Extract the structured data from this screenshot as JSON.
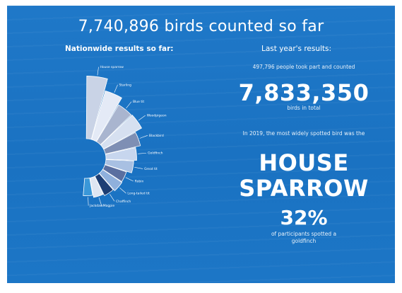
{
  "headline": "7,740,896 birds counted so far",
  "left_caption": "Nationwide results so far:",
  "right_caption": "Last year's results:",
  "last_year": {
    "participants": "497,796 people took part and counted",
    "total_value": "7,833,350",
    "total_caption": "birds in total",
    "species_intro": "In 2019, the most widely spotted bird was the",
    "species_line1": "HOUSE",
    "species_line2": "SPARROW",
    "percent": "32%",
    "percent_caption_line1": "of participants spotted a",
    "percent_caption_line2": "goldfinch"
  },
  "chart_data": {
    "type": "pie",
    "variant": "half-donut rose (radial bars)",
    "categories": [
      "House sparrow",
      "Starling",
      "Blue tit",
      "Woodpigeon",
      "Blackbird",
      "Goldfinch",
      "Great tit",
      "Robin",
      "Long-tailed tit",
      "Chaffinch",
      "Magpie",
      "Jackdaw"
    ],
    "values": [
      10.8,
      8.7,
      7.4,
      7.5,
      6.2,
      5.3,
      4.8,
      3.9,
      4.0,
      3.7,
      3.4,
      3.0
    ],
    "colors": [
      "#c9d3e6",
      "#e4eaf6",
      "#a9b5cf",
      "#d6e0f0",
      "#7e8fb4",
      "#c7d6ee",
      "#a8c0e2",
      "#5a6fa0",
      "#8fb0dc",
      "#1d3e74",
      "#dfe6f2",
      "#3a97d8"
    ],
    "labels_legible": false
  }
}
